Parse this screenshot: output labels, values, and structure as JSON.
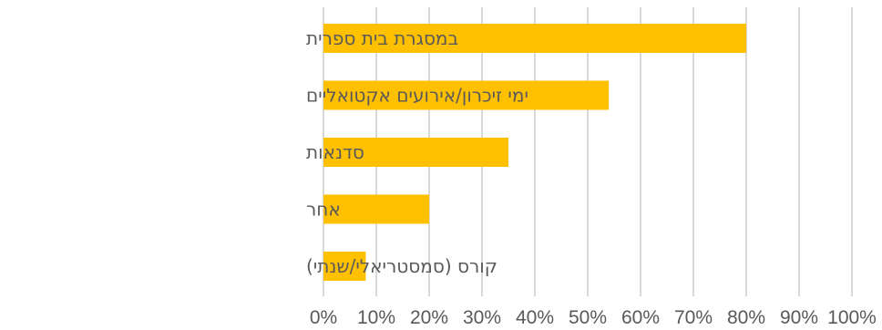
{
  "chart_data": {
    "type": "bar",
    "orientation": "horizontal",
    "categories": [
      "במסגרת בית ספרית",
      "ימי זיכרון/אירועים אקטואליים",
      "סדנאות",
      "אחר",
      "קורס (סמסטריאלי/שנתי)"
    ],
    "values": [
      80,
      54,
      35,
      20,
      8
    ],
    "xlim": [
      0,
      100
    ],
    "xticks": [
      0,
      10,
      20,
      30,
      40,
      50,
      60,
      70,
      80,
      90,
      100
    ],
    "xtick_labels": [
      "0%",
      "10%",
      "20%",
      "30%",
      "40%",
      "50%",
      "60%",
      "70%",
      "80%",
      "90%",
      "100%"
    ],
    "grid": true,
    "legend": "none",
    "bar_color": "#FFC000",
    "title": "",
    "xlabel": "",
    "ylabel": ""
  }
}
